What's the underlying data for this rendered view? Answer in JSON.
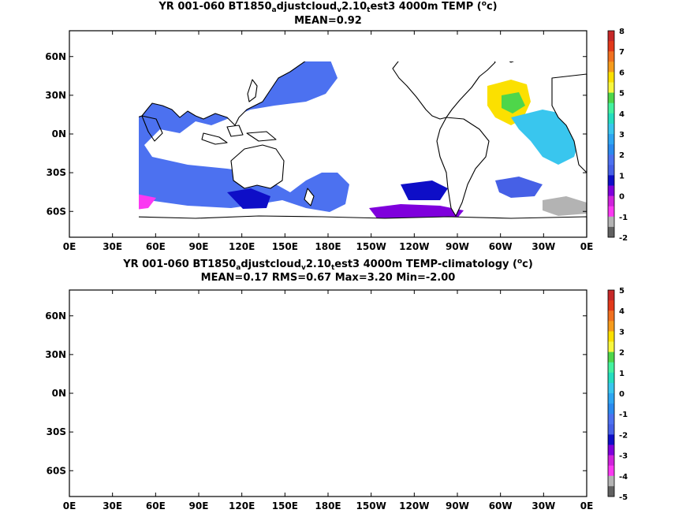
{
  "panels": [
    {
      "title_parts": [
        "YR 001-060 BT1850",
        "a",
        "djustcloud",
        "v",
        "2.10",
        "t",
        "est3 4000m TEMP (",
        "o",
        "c)"
      ],
      "subtitle": "MEAN=0.92",
      "colorbar": {
        "levels": [
          "8",
          "7",
          "6",
          "5",
          "4",
          "3",
          "2",
          "1",
          "0",
          "-1",
          "-2"
        ],
        "colors": [
          "#c62828",
          "#e2391a",
          "#f07020",
          "#f59b1c",
          "#fbe000",
          "#f7f73f",
          "#4ed64a",
          "#43f29f",
          "#25dec0",
          "#39c6ee",
          "#2ea6f2",
          "#2b8aef",
          "#4c71f0",
          "#4660e6",
          "#0e0ec7",
          "#7f00dc",
          "#d022dc",
          "#fb38f2",
          "#b3b3b3",
          "#616161"
        ]
      },
      "x_ticks": [
        "0E",
        "30E",
        "60E",
        "90E",
        "120E",
        "150E",
        "180E",
        "150W",
        "120W",
        "90W",
        "60W",
        "30W",
        "0E"
      ],
      "y_ticks": [
        "60N",
        "30N",
        "0N",
        "30S",
        "60S"
      ]
    },
    {
      "title_parts": [
        "YR 001-060 BT1850",
        "a",
        "djustcloud",
        "v",
        "2.10",
        "t",
        "est3 4000m TEMP-climatology (",
        "o",
        "c)"
      ],
      "subtitle": "MEAN=0.17   RMS=0.67   Max=3.20   Min=-2.00",
      "colorbar": {
        "levels": [
          "5",
          "4",
          "3",
          "2",
          "1",
          "0",
          "-1",
          "-2",
          "-3",
          "-4",
          "-5"
        ],
        "colors": [
          "#c62828",
          "#e2391a",
          "#f07020",
          "#f59b1c",
          "#fbe000",
          "#f7f73f",
          "#4ed64a",
          "#43f29f",
          "#25dec0",
          "#39c6ee",
          "#2ea6f2",
          "#2b8aef",
          "#4c71f0",
          "#4660e6",
          "#0e0ec7",
          "#7f00dc",
          "#d022dc",
          "#fb38f2",
          "#b3b3b3",
          "#616161"
        ]
      },
      "x_ticks": [
        "0E",
        "30E",
        "60E",
        "90E",
        "120E",
        "150E",
        "180E",
        "150W",
        "120W",
        "90W",
        "60W",
        "30W",
        "0E"
      ],
      "y_ticks": [
        "60N",
        "30N",
        "0N",
        "30S",
        "60S"
      ]
    }
  ]
}
